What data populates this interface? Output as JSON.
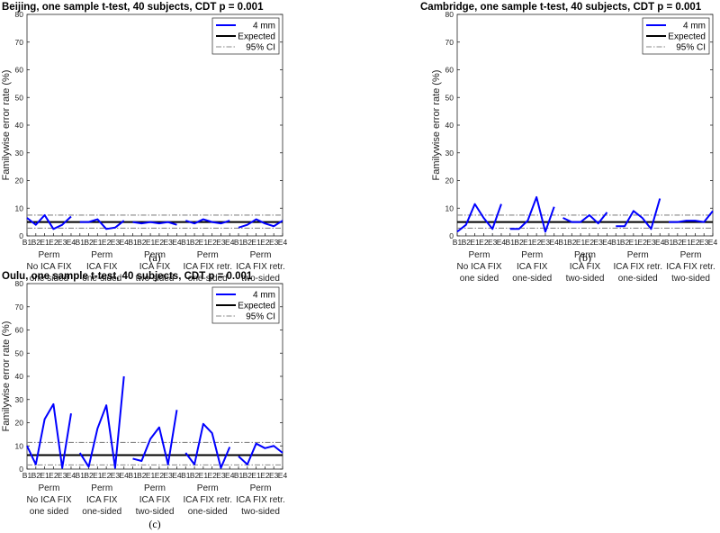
{
  "chart_data": [
    {
      "type": "line",
      "title": "Beijing, one sample t-test, 40 subjects, CDT p = 0.001",
      "caption": "(a)",
      "ylabel": "Familywise error rate (%)",
      "ylim": [
        0,
        80
      ],
      "yticks": [
        0,
        10,
        20,
        30,
        40,
        50,
        60,
        70,
        80
      ],
      "categories": [
        "B1",
        "B2",
        "E1",
        "E2",
        "E3",
        "E4",
        "B1",
        "B2",
        "E1",
        "E2",
        "E3",
        "E4",
        "B1",
        "B2",
        "E1",
        "E2",
        "E3",
        "E4",
        "B1",
        "B2",
        "E1",
        "E2",
        "E3",
        "E4",
        "B1",
        "B2",
        "E1",
        "E2",
        "E3",
        "E4"
      ],
      "groups": [
        {
          "lines": [
            "Perm",
            "No ICA FIX",
            "one sided"
          ]
        },
        {
          "lines": [
            "Perm",
            "ICA FIX",
            "one-sided"
          ]
        },
        {
          "lines": [
            "Perm",
            "ICA FIX",
            "two-sided"
          ]
        },
        {
          "lines": [
            "Perm",
            "ICA FIX retr.",
            "one-sided"
          ]
        },
        {
          "lines": [
            "Perm",
            "ICA FIX retr.",
            "two-sided"
          ]
        }
      ],
      "series": [
        {
          "name": "4 mm",
          "color": "#0000ff",
          "groups": [
            [
              6.5,
              4.0,
              7.5,
              2.5,
              4.0,
              7.0
            ],
            [
              5.0,
              5.0,
              6.0,
              2.5,
              3.0,
              5.5
            ],
            [
              5.0,
              4.5,
              5.0,
              4.5,
              5.0,
              4.0
            ],
            [
              5.5,
              4.5,
              6.0,
              5.0,
              4.5,
              5.5
            ],
            [
              3.0,
              4.0,
              6.0,
              4.5,
              3.5,
              5.5
            ]
          ]
        }
      ],
      "expected": 5,
      "ci": [
        2.8,
        7.5
      ],
      "legend": {
        "labels": [
          "4 mm",
          "Expected",
          "95% CI"
        ],
        "placement": "top-right"
      }
    },
    {
      "type": "line",
      "title": "Cambridge, one sample t-test, 40 subjects, CDT p = 0.001",
      "caption": "(b)",
      "ylabel": "Familywise error rate (%)",
      "ylim": [
        0,
        80
      ],
      "yticks": [
        0,
        10,
        20,
        30,
        40,
        50,
        60,
        70,
        80
      ],
      "categories": [
        "B1",
        "B2",
        "E1",
        "E2",
        "E3",
        "E4",
        "B1",
        "B2",
        "E1",
        "E2",
        "E3",
        "E4",
        "B1",
        "B2",
        "E1",
        "E2",
        "E3",
        "E4",
        "B1",
        "B2",
        "E1",
        "E2",
        "E3",
        "E4",
        "B1",
        "B2",
        "E1",
        "E2",
        "E3",
        "E4"
      ],
      "groups": [
        {
          "lines": [
            "Perm",
            "No ICA FIX",
            "one sided"
          ]
        },
        {
          "lines": [
            "Perm",
            "ICA FIX",
            "one-sided"
          ]
        },
        {
          "lines": [
            "Perm",
            "ICA FIX",
            "two-sided"
          ]
        },
        {
          "lines": [
            "Perm",
            "ICA FIX retr.",
            "one-sided"
          ]
        },
        {
          "lines": [
            "Perm",
            "ICA FIX retr.",
            "two-sided"
          ]
        }
      ],
      "series": [
        {
          "name": "4 mm",
          "color": "#0000ff",
          "groups": [
            [
              1.5,
              4.0,
              11.5,
              6.5,
              2.5,
              11.5
            ],
            [
              2.5,
              2.5,
              5.5,
              14.0,
              1.5,
              10.5
            ],
            [
              6.5,
              5.0,
              5.0,
              7.5,
              4.5,
              8.5
            ],
            [
              3.5,
              3.5,
              9.0,
              6.5,
              2.5,
              13.5
            ],
            [
              5.0,
              5.0,
              5.5,
              5.5,
              5.0,
              9.0
            ]
          ]
        }
      ],
      "expected": 5,
      "ci": [
        2.8,
        7.5
      ],
      "legend": {
        "labels": [
          "4 mm",
          "Expected",
          "95% CI"
        ],
        "placement": "top-right"
      }
    },
    {
      "type": "line",
      "title": "Oulu, one sample t-test, 40 subjects, CDT p = 0.001",
      "caption": "(c)",
      "ylabel": "Familywise error rate (%)",
      "ylim": [
        0,
        80
      ],
      "yticks": [
        0,
        10,
        20,
        30,
        40,
        50,
        60,
        70,
        80
      ],
      "categories": [
        "B1",
        "B2",
        "E1",
        "E2",
        "E3",
        "E4",
        "B1",
        "B2",
        "E1",
        "E2",
        "E3",
        "E4",
        "B1",
        "B2",
        "E1",
        "E2",
        "E3",
        "E4",
        "B1",
        "B2",
        "E1",
        "E2",
        "E3",
        "E4",
        "B1",
        "B2",
        "E1",
        "E2",
        "E3",
        "E4"
      ],
      "groups": [
        {
          "lines": [
            "Perm",
            "No ICA FIX",
            "one sided"
          ]
        },
        {
          "lines": [
            "Perm",
            "ICA FIX",
            "one-sided"
          ]
        },
        {
          "lines": [
            "Perm",
            "ICA FIX",
            "two-sided"
          ]
        },
        {
          "lines": [
            "Perm",
            "ICA FIX retr.",
            "one-sided"
          ]
        },
        {
          "lines": [
            "Perm",
            "ICA FIX retr.",
            "two-sided"
          ]
        }
      ],
      "series": [
        {
          "name": "4 mm",
          "color": "#0000ff",
          "groups": [
            [
              10.0,
              2.0,
              21.5,
              28.0,
              0.5,
              24.0
            ],
            [
              7.0,
              1.0,
              17.5,
              27.5,
              0.5,
              40.0
            ],
            [
              4.5,
              3.5,
              13.0,
              18.0,
              2.0,
              25.5
            ],
            [
              7.0,
              2.0,
              19.5,
              15.5,
              0.5,
              9.5
            ],
            [
              5.5,
              2.0,
              11.0,
              9.0,
              10.0,
              7.0
            ]
          ]
        }
      ],
      "expected": 6,
      "ci": [
        1.8,
        11.5
      ],
      "legend": {
        "labels": [
          "4 mm",
          "Expected",
          "95% CI"
        ],
        "placement": "top-right"
      }
    }
  ]
}
